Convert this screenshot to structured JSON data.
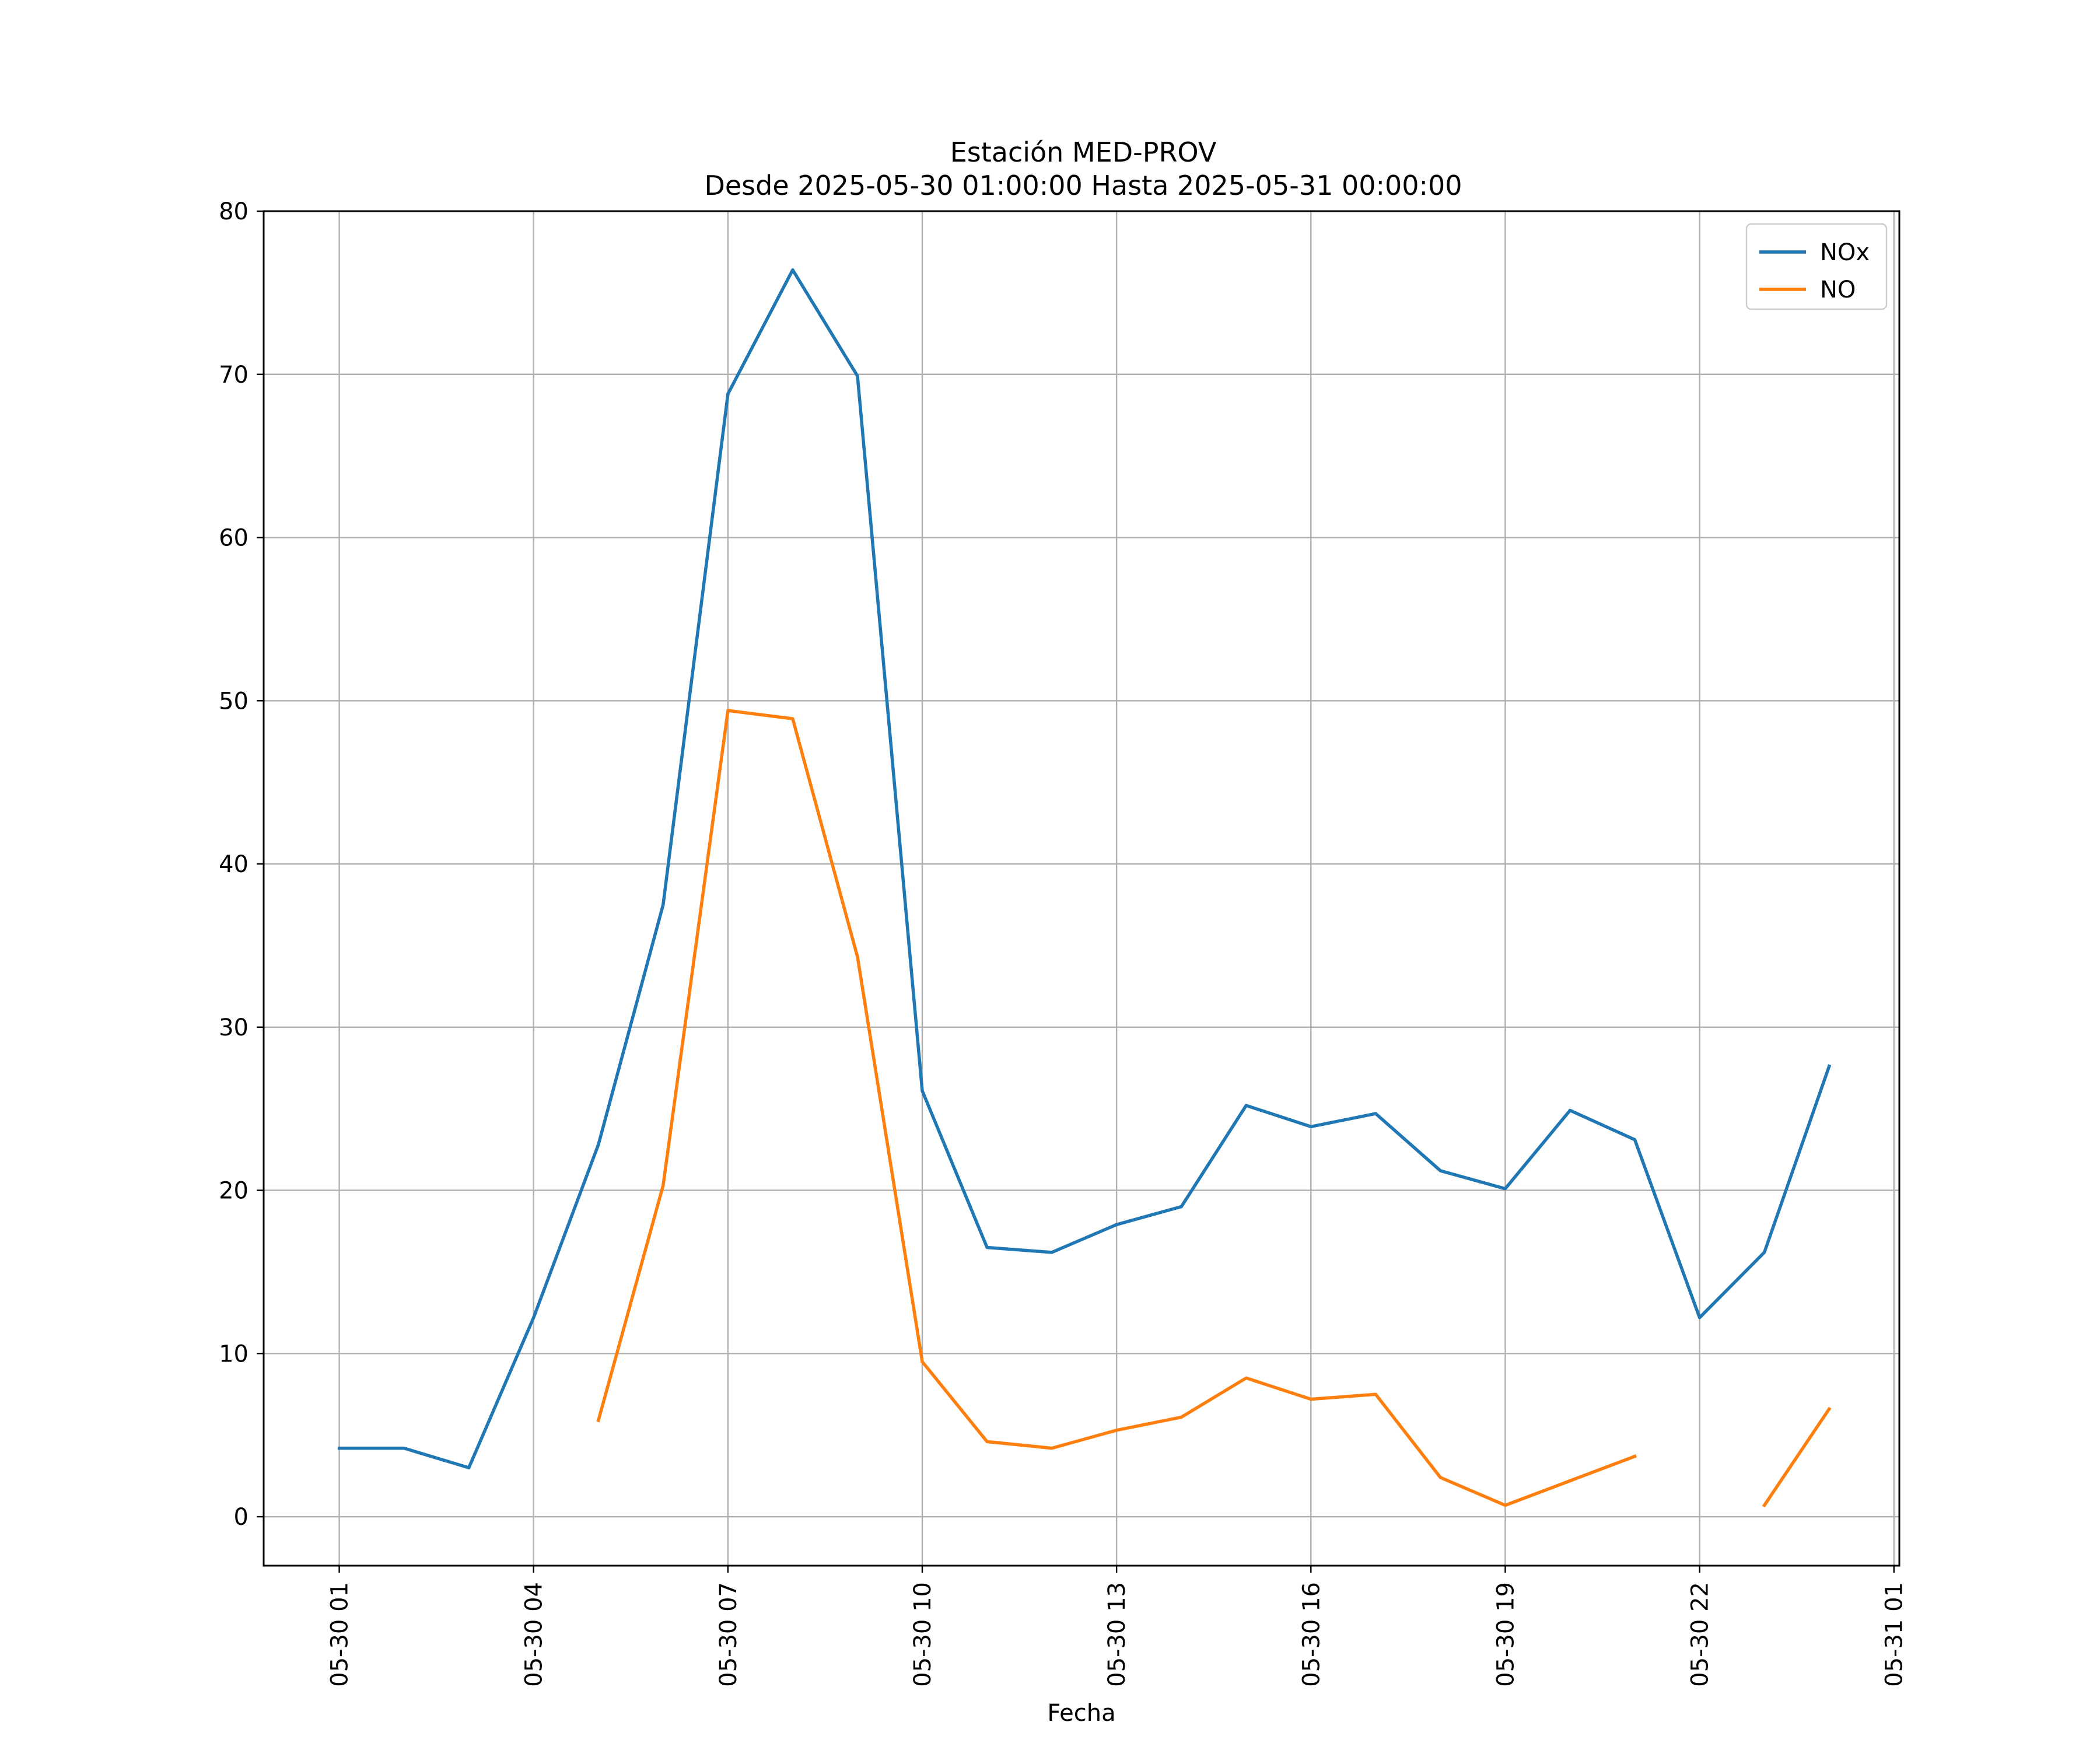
{
  "chart_data": {
    "type": "line",
    "title": "Estación MED-PROV",
    "subtitle": "Desde 2025-05-30 01:00:00 Hasta 2025-05-31 00:00:00",
    "xlabel": "Fecha",
    "ylabel": "",
    "x": [
      "2025-05-30 01:00",
      "2025-05-30 02:00",
      "2025-05-30 03:00",
      "2025-05-30 04:00",
      "2025-05-30 05:00",
      "2025-05-30 06:00",
      "2025-05-30 07:00",
      "2025-05-30 08:00",
      "2025-05-30 09:00",
      "2025-05-30 10:00",
      "2025-05-30 11:00",
      "2025-05-30 12:00",
      "2025-05-30 13:00",
      "2025-05-30 14:00",
      "2025-05-30 15:00",
      "2025-05-30 16:00",
      "2025-05-30 17:00",
      "2025-05-30 18:00",
      "2025-05-30 19:00",
      "2025-05-30 20:00",
      "2025-05-30 21:00",
      "2025-05-30 22:00",
      "2025-05-30 23:00",
      "2025-05-31 00:00"
    ],
    "x_ticks": [
      "05-30 01",
      "05-30 04",
      "05-30 07",
      "05-30 10",
      "05-30 13",
      "05-30 16",
      "05-30 19",
      "05-30 22",
      "05-31 01"
    ],
    "x_tick_values": [
      "2025-05-30 01:00",
      "2025-05-30 04:00",
      "2025-05-30 07:00",
      "2025-05-30 10:00",
      "2025-05-30 13:00",
      "2025-05-30 16:00",
      "2025-05-30 19:00",
      "2025-05-30 22:00",
      "2025-05-31 01:00"
    ],
    "xlim": [
      "2025-05-29 23:50",
      "2025-05-31 01:05"
    ],
    "ylim": [
      -3,
      80
    ],
    "y_ticks": [
      0,
      10,
      20,
      30,
      40,
      50,
      60,
      70,
      80
    ],
    "grid": true,
    "legend_position": "top-right",
    "series": [
      {
        "name": "NOx",
        "color": "#1f77b4",
        "values": [
          4.2,
          4.2,
          3.0,
          12.2,
          22.8,
          37.5,
          68.8,
          76.4,
          69.9,
          26.1,
          16.5,
          16.2,
          17.9,
          19.0,
          25.2,
          23.9,
          24.7,
          21.2,
          20.1,
          24.9,
          23.1,
          12.2,
          16.2,
          27.6
        ]
      },
      {
        "name": "NO",
        "color": "#ff7f0e",
        "values": [
          null,
          null,
          null,
          null,
          5.9,
          20.3,
          49.4,
          48.9,
          34.3,
          9.5,
          4.6,
          4.2,
          5.3,
          6.1,
          8.5,
          7.2,
          7.5,
          2.4,
          0.7,
          2.2,
          3.7,
          null,
          0.7,
          6.6
        ]
      }
    ]
  }
}
